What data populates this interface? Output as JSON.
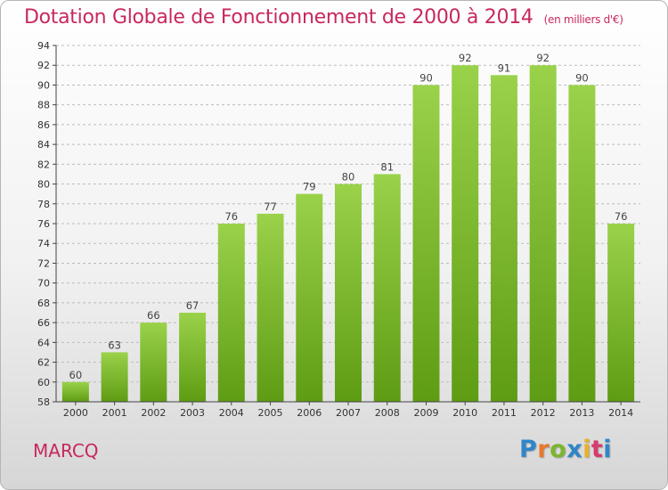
{
  "header": {
    "title": "Dotation Globale de Fonctionnement de 2000 à 2014",
    "unit": "(en milliers d'€)"
  },
  "footer": {
    "commune": "MARCQ",
    "logo": "Proxiti"
  },
  "colors": {
    "title": "#c8285f",
    "bar_top": "#9ad24a",
    "bar_bottom": "#5e9c14",
    "axis": "#444444",
    "grid": "#bcbcbc"
  },
  "chart_data": {
    "type": "bar",
    "categories": [
      "2000",
      "2001",
      "2002",
      "2003",
      "2004",
      "2005",
      "2006",
      "2007",
      "2008",
      "2009",
      "2010",
      "2011",
      "2012",
      "2013",
      "2014"
    ],
    "values": [
      60,
      63,
      66,
      67,
      76,
      77,
      79,
      80,
      81,
      90,
      92,
      91,
      92,
      90,
      76
    ],
    "ylim": [
      58,
      94
    ],
    "yticks": [
      58,
      60,
      62,
      64,
      66,
      68,
      70,
      72,
      74,
      76,
      78,
      80,
      82,
      84,
      86,
      88,
      90,
      92,
      94
    ],
    "grid": "horizontal dashed",
    "legend": "none"
  }
}
